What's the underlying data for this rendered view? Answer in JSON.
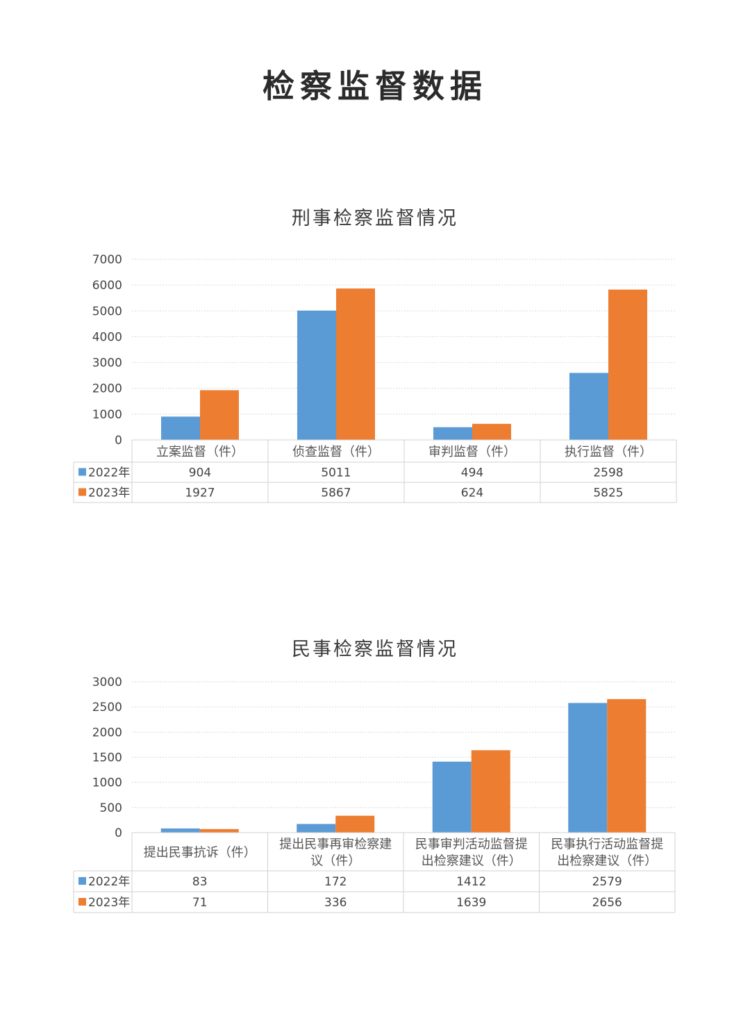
{
  "page": {
    "title": "检察监督数据"
  },
  "colors": {
    "series_2022": "#5b9bd5",
    "series_2023": "#ed7d31",
    "grid": "#d9d9d9"
  },
  "chart_data": [
    {
      "type": "bar",
      "title": "刑事检察监督情况",
      "categories": [
        [
          "立案监督（件）"
        ],
        [
          "侦查监督（件）"
        ],
        [
          "审判监督（件）"
        ],
        [
          "执行监督（件）"
        ]
      ],
      "series": [
        {
          "name": "2022年",
          "values": [
            904,
            5011,
            494,
            2598
          ]
        },
        {
          "name": "2023年",
          "values": [
            1927,
            5867,
            624,
            5825
          ]
        }
      ],
      "ylim": [
        0,
        7000
      ],
      "yticks": [
        0,
        1000,
        2000,
        3000,
        4000,
        5000,
        6000,
        7000
      ],
      "grid": true,
      "legend": "data-table"
    },
    {
      "type": "bar",
      "title": "民事检察监督情况",
      "categories": [
        [
          "提出民事抗诉（件）"
        ],
        [
          "提出民事再审检察建",
          "议（件）"
        ],
        [
          "民事审判活动监督提",
          "出检察建议（件）"
        ],
        [
          "民事执行活动监督提",
          "出检察建议（件）"
        ]
      ],
      "series": [
        {
          "name": "2022年",
          "values": [
            83,
            172,
            1412,
            2579
          ]
        },
        {
          "name": "2023年",
          "values": [
            71,
            336,
            1639,
            2656
          ]
        }
      ],
      "ylim": [
        0,
        3000
      ],
      "yticks": [
        0,
        500,
        1000,
        1500,
        2000,
        2500,
        3000
      ],
      "grid": true,
      "legend": "data-table"
    }
  ]
}
